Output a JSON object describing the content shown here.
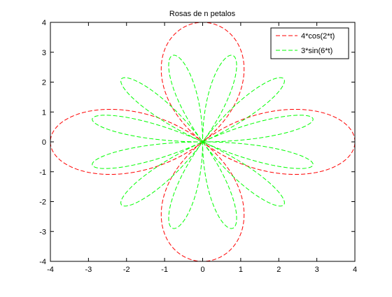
{
  "chart_data": {
    "type": "line",
    "title": "Rosas de n petalos",
    "xlabel": "",
    "ylabel": "",
    "xlim": [
      -4,
      4
    ],
    "ylim": [
      -4,
      4
    ],
    "xticks": [
      -4,
      -3,
      -2,
      -1,
      0,
      1,
      2,
      3,
      4
    ],
    "yticks": [
      -4,
      -3,
      -2,
      -1,
      0,
      1,
      2,
      3,
      4
    ],
    "grid": false,
    "legend_position": "top-right",
    "series": [
      {
        "name": "4*cos(2*t)",
        "kind": "polar-rose",
        "amplitude": 4,
        "frequency": 2,
        "function": "cos",
        "color": "#ff0000",
        "dash": "dashed"
      },
      {
        "name": "3*sin(6*t)",
        "kind": "polar-rose",
        "amplitude": 3,
        "frequency": 6,
        "function": "sin",
        "color": "#00ff00",
        "dash": "dashed"
      }
    ]
  }
}
